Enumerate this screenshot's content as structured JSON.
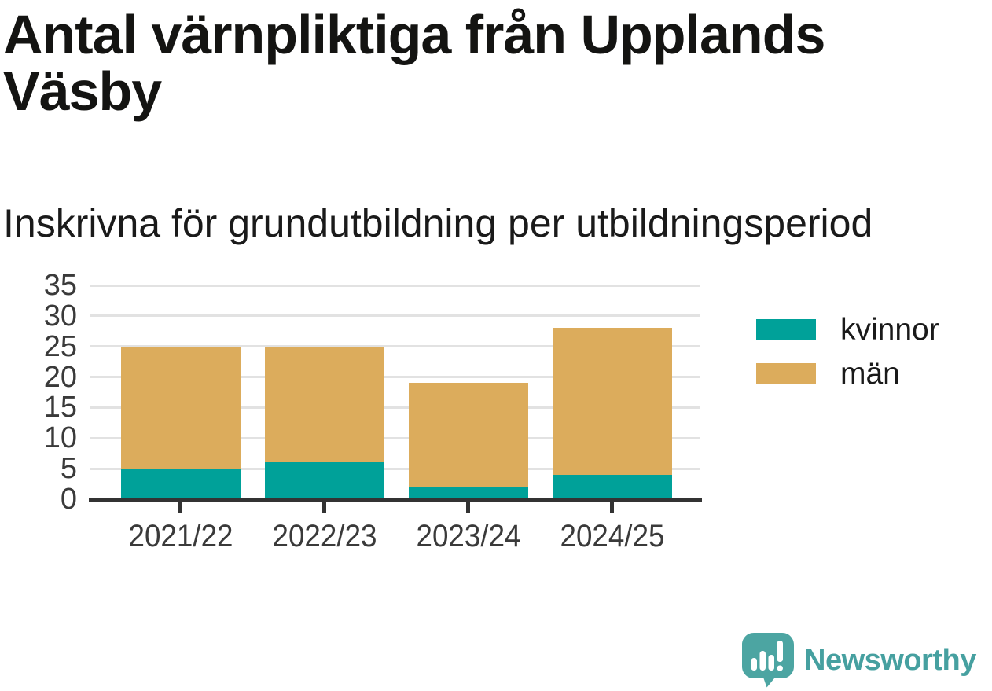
{
  "page": {
    "title": "Antal värnpliktiga från Upplands Väsby",
    "subtitle": "Inskrivna för grundutbildning per utbildningsperiod"
  },
  "branding": {
    "logo_text": "Newsworthy",
    "logo_color": "#46a0a0",
    "logo_icon": "newsworthy-speech-bubble-bar-chart-icon",
    "logo_icon_color": "#4ca5a2"
  },
  "chart_data": {
    "type": "bar",
    "stacked": true,
    "title": "Antal värnpliktiga från Upplands Väsby",
    "subtitle": "Inskrivna för grundutbildning per utbildningsperiod",
    "categories": [
      "2021/22",
      "2022/23",
      "2023/24",
      "2024/25"
    ],
    "series": [
      {
        "name": "kvinnor",
        "color": "#00a199",
        "values": [
          5,
          6,
          2,
          4
        ]
      },
      {
        "name": "män",
        "color": "#dcac5c",
        "values": [
          20,
          19,
          17,
          24
        ]
      }
    ],
    "stack_totals": [
      25,
      25,
      19,
      28
    ],
    "xlabel": "",
    "ylabel": "",
    "ylim": [
      0,
      35
    ],
    "y_ticks": [
      0,
      5,
      10,
      15,
      20,
      25,
      30,
      35
    ],
    "grid": "horizontal",
    "gridline_color": "#e2e2e2",
    "axis_color": "#333333",
    "tick_label_color": "#3a3a3a",
    "legend_position": "right"
  }
}
